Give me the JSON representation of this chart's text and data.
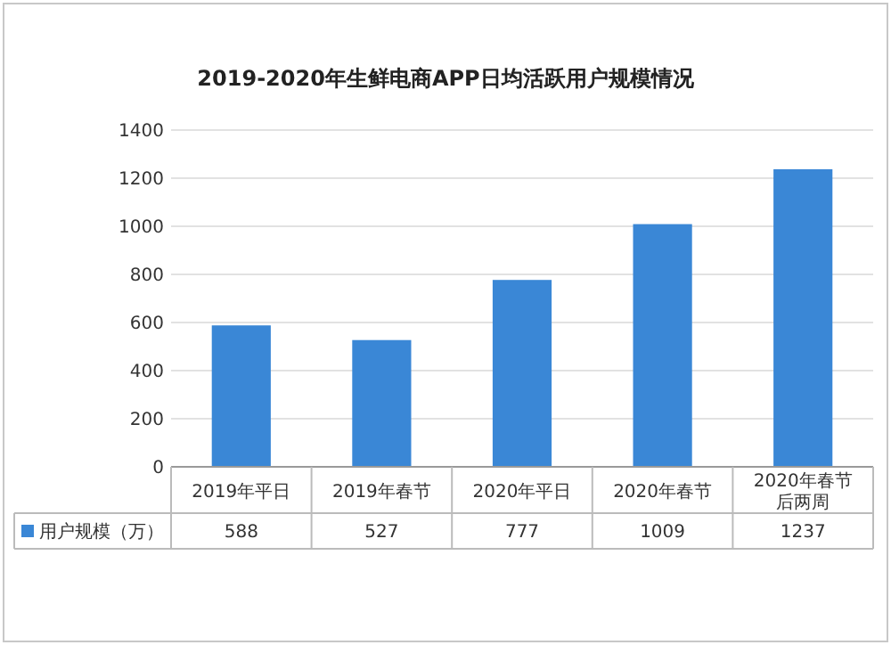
{
  "chart_data": {
    "type": "bar",
    "title": "2019-2020年生鲜电商APP日均活跃用户规模情况",
    "categories": [
      "2019年平日",
      "2019年春节",
      "2020年平日",
      "2020年春节",
      "2020年春节后两周"
    ],
    "series": [
      {
        "name": "用户规模（万）",
        "color": "#3a87d6",
        "values": [
          588,
          527,
          777,
          1009,
          1237
        ]
      }
    ],
    "ylim": [
      0,
      1400
    ],
    "yticks": [
      0,
      200,
      400,
      600,
      800,
      1000,
      1200,
      1400
    ],
    "grid": "y",
    "legend": "bottom",
    "data_labels": true
  }
}
